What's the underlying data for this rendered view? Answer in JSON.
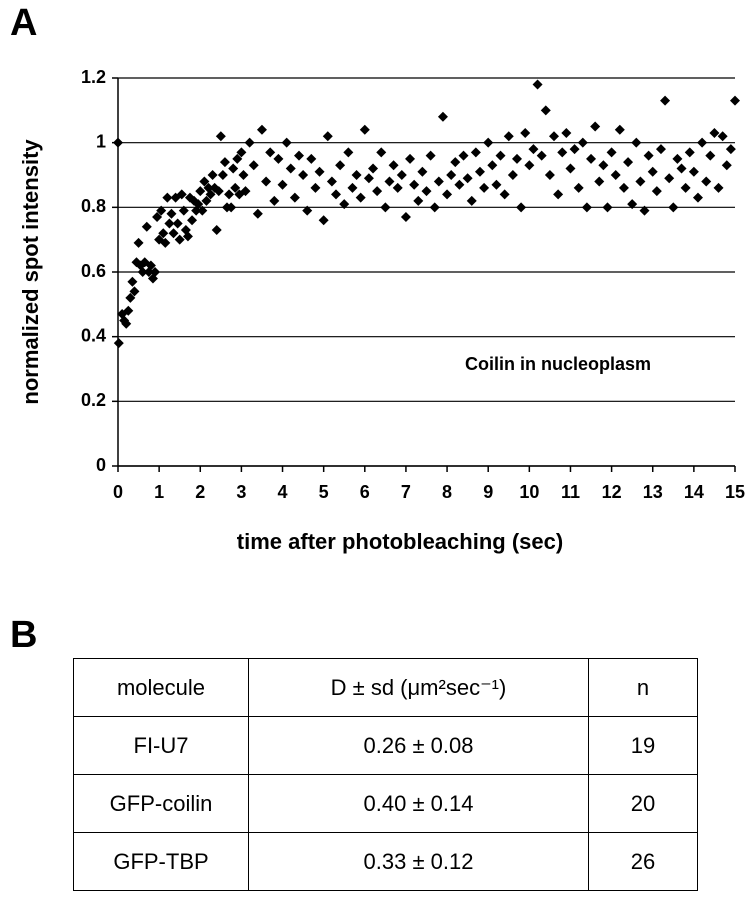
{
  "panels": {
    "a": "A",
    "b": "B"
  },
  "chart_data": {
    "type": "scatter",
    "ylabel": "normalized spot intensity",
    "xlabel": "time after photobleaching (sec)",
    "annotation": "Coilin in nucleoplasm",
    "color": "#000000",
    "grid": true,
    "xlim": [
      0,
      15
    ],
    "ylim": [
      0,
      1.2
    ],
    "xticks": [
      0,
      1,
      2,
      3,
      4,
      5,
      6,
      7,
      8,
      9,
      10,
      11,
      12,
      13,
      14,
      15
    ],
    "yticks": [
      0,
      0.2,
      0.4,
      0.6,
      0.8,
      1,
      1.2
    ],
    "x": [
      0,
      0.02,
      0.1,
      0.15,
      0.2,
      0.25,
      0.3,
      0.35,
      0.4,
      0.45,
      0.5,
      0.55,
      0.6,
      0.65,
      0.7,
      0.75,
      0.8,
      0.85,
      0.9,
      0.95,
      1.0,
      1.05,
      1.1,
      1.15,
      1.2,
      1.25,
      1.3,
      1.35,
      1.4,
      1.45,
      1.5,
      1.55,
      1.6,
      1.65,
      1.7,
      1.75,
      1.8,
      1.85,
      1.9,
      1.95,
      2.0,
      2.05,
      2.1,
      2.15,
      2.2,
      2.25,
      2.3,
      2.35,
      2.4,
      2.45,
      2.5,
      2.55,
      2.6,
      2.65,
      2.7,
      2.75,
      2.8,
      2.85,
      2.9,
      2.95,
      3.0,
      3.05,
      3.1,
      3.2,
      3.3,
      3.4,
      3.5,
      3.6,
      3.7,
      3.8,
      3.9,
      4.0,
      4.1,
      4.2,
      4.3,
      4.4,
      4.5,
      4.6,
      4.7,
      4.8,
      4.9,
      5.0,
      5.1,
      5.2,
      5.3,
      5.4,
      5.5,
      5.6,
      5.7,
      5.8,
      5.9,
      6.0,
      6.1,
      6.2,
      6.3,
      6.4,
      6.5,
      6.6,
      6.7,
      6.8,
      6.9,
      7.0,
      7.1,
      7.2,
      7.3,
      7.4,
      7.5,
      7.6,
      7.7,
      7.8,
      7.9,
      8.0,
      8.1,
      8.2,
      8.3,
      8.4,
      8.5,
      8.6,
      8.7,
      8.8,
      8.9,
      9.0,
      9.1,
      9.2,
      9.3,
      9.4,
      9.5,
      9.6,
      9.7,
      9.8,
      9.9,
      10.0,
      10.1,
      10.2,
      10.3,
      10.4,
      10.5,
      10.6,
      10.7,
      10.8,
      10.9,
      11.0,
      11.1,
      11.2,
      11.3,
      11.4,
      11.5,
      11.6,
      11.7,
      11.8,
      11.9,
      12.0,
      12.1,
      12.2,
      12.3,
      12.4,
      12.5,
      12.6,
      12.7,
      12.8,
      12.9,
      13.0,
      13.1,
      13.2,
      13.3,
      13.4,
      13.5,
      13.6,
      13.7,
      13.8,
      13.9,
      14.0,
      14.1,
      14.2,
      14.3,
      14.4,
      14.5,
      14.6,
      14.7,
      14.8,
      14.9,
      15.0
    ],
    "values": [
      1.0,
      0.38,
      0.47,
      0.45,
      0.44,
      0.48,
      0.52,
      0.57,
      0.54,
      0.63,
      0.69,
      0.62,
      0.6,
      0.63,
      0.74,
      0.6,
      0.62,
      0.58,
      0.6,
      0.77,
      0.7,
      0.79,
      0.72,
      0.69,
      0.83,
      0.75,
      0.78,
      0.72,
      0.83,
      0.75,
      0.7,
      0.84,
      0.79,
      0.73,
      0.71,
      0.83,
      0.76,
      0.82,
      0.79,
      0.81,
      0.85,
      0.79,
      0.88,
      0.82,
      0.86,
      0.84,
      0.9,
      0.86,
      0.73,
      0.85,
      1.02,
      0.9,
      0.94,
      0.8,
      0.84,
      0.8,
      0.92,
      0.86,
      0.95,
      0.84,
      0.97,
      0.9,
      0.85,
      1.0,
      0.93,
      0.78,
      1.04,
      0.88,
      0.97,
      0.82,
      0.95,
      0.87,
      1.0,
      0.92,
      0.83,
      0.96,
      0.9,
      0.79,
      0.95,
      0.86,
      0.91,
      0.76,
      1.02,
      0.88,
      0.84,
      0.93,
      0.81,
      0.97,
      0.86,
      0.9,
      0.83,
      1.04,
      0.89,
      0.92,
      0.85,
      0.97,
      0.8,
      0.88,
      0.93,
      0.86,
      0.9,
      0.77,
      0.95,
      0.87,
      0.82,
      0.91,
      0.85,
      0.96,
      0.8,
      0.88,
      1.08,
      0.84,
      0.9,
      0.94,
      0.87,
      0.96,
      0.89,
      0.82,
      0.97,
      0.91,
      0.86,
      1.0,
      0.93,
      0.87,
      0.96,
      0.84,
      1.02,
      0.9,
      0.95,
      0.8,
      1.03,
      0.93,
      0.98,
      1.18,
      0.96,
      1.1,
      0.9,
      1.02,
      0.84,
      0.97,
      1.03,
      0.92,
      0.98,
      0.86,
      1.0,
      0.8,
      0.95,
      1.05,
      0.88,
      0.93,
      0.8,
      0.97,
      0.9,
      1.04,
      0.86,
      0.94,
      0.81,
      1.0,
      0.88,
      0.79,
      0.96,
      0.91,
      0.85,
      0.98,
      1.13,
      0.89,
      0.8,
      0.95,
      0.92,
      0.86,
      0.97,
      0.91,
      0.83,
      1.0,
      0.88,
      0.96,
      1.03,
      0.86,
      1.02,
      0.93,
      0.98,
      1.13
    ]
  },
  "table": {
    "header": [
      "molecule",
      "D ± sd (μm²sec⁻¹)",
      "n"
    ],
    "rows": [
      [
        "FI-U7",
        "0.26 ± 0.08",
        "19"
      ],
      [
        "GFP-coilin",
        "0.40 ± 0.14",
        "20"
      ],
      [
        "GFP-TBP",
        "0.33 ± 0.12",
        "26"
      ]
    ]
  }
}
